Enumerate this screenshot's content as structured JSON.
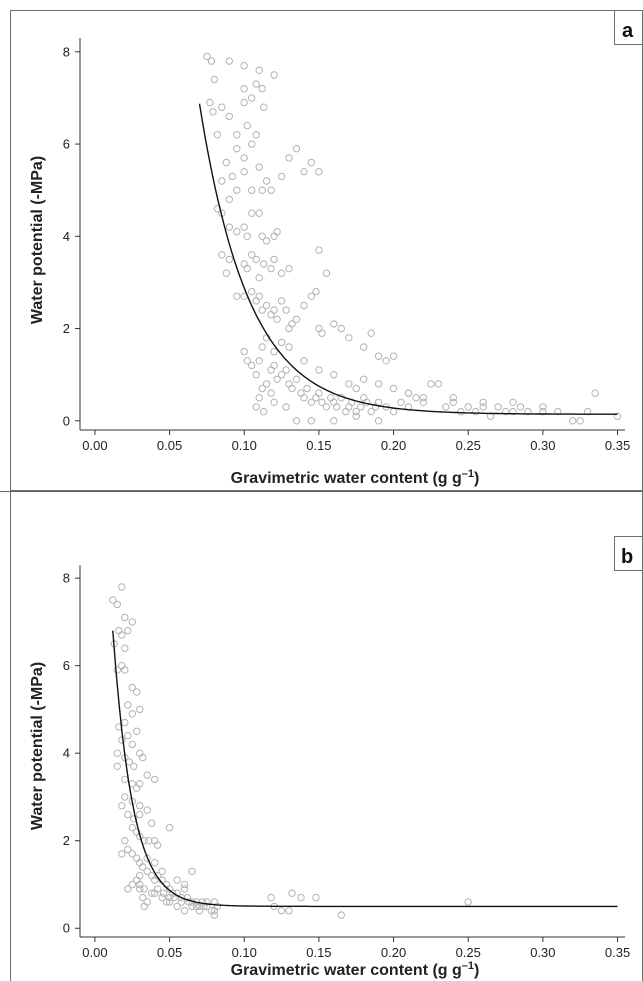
{
  "chart_data": [
    {
      "type": "scatter",
      "panel_label": "a",
      "xlabel": "Gravimetric water content (g g",
      "xlabel_sup": "–1",
      "xlabel_end": ")",
      "ylabel": "Water potential (-MPa)",
      "xlim": [
        -0.01,
        0.355
      ],
      "ylim": [
        -0.2,
        8.3
      ],
      "xticks": [
        0.0,
        0.05,
        0.1,
        0.15,
        0.2,
        0.25,
        0.3,
        0.35
      ],
      "xtick_labels": [
        "0.00",
        "0.05",
        "0.10",
        "0.15",
        "0.20",
        "0.25",
        "0.30",
        "0.35"
      ],
      "yticks": [
        0,
        2,
        4,
        6,
        8
      ],
      "ytick_labels": [
        "0",
        "2",
        "4",
        "6",
        "8"
      ],
      "marker_color": "#b3b3b3",
      "curve_color": "#111111",
      "curve": {
        "x_start": 0.07,
        "x_end": 0.35,
        "a": 0.14,
        "b": 55,
        "k": 30
      },
      "points": [
        [
          0.075,
          7.9
        ],
        [
          0.078,
          7.8
        ],
        [
          0.08,
          7.4
        ],
        [
          0.077,
          6.9
        ],
        [
          0.079,
          6.7
        ],
        [
          0.085,
          6.8
        ],
        [
          0.09,
          6.6
        ],
        [
          0.082,
          6.2
        ],
        [
          0.095,
          6.2
        ],
        [
          0.1,
          6.9
        ],
        [
          0.1,
          7.2
        ],
        [
          0.105,
          7.0
        ],
        [
          0.108,
          7.3
        ],
        [
          0.11,
          7.6
        ],
        [
          0.112,
          7.2
        ],
        [
          0.113,
          6.8
        ],
        [
          0.09,
          7.8
        ],
        [
          0.1,
          7.7
        ],
        [
          0.12,
          7.5
        ],
        [
          0.095,
          5.9
        ],
        [
          0.088,
          5.6
        ],
        [
          0.092,
          5.3
        ],
        [
          0.085,
          5.2
        ],
        [
          0.1,
          5.4
        ],
        [
          0.105,
          5.0
        ],
        [
          0.11,
          5.5
        ],
        [
          0.112,
          5.0
        ],
        [
          0.115,
          5.2
        ],
        [
          0.118,
          5.0
        ],
        [
          0.125,
          5.3
        ],
        [
          0.13,
          5.7
        ],
        [
          0.135,
          5.9
        ],
        [
          0.14,
          5.4
        ],
        [
          0.145,
          5.6
        ],
        [
          0.15,
          5.4
        ],
        [
          0.105,
          6.0
        ],
        [
          0.108,
          6.2
        ],
        [
          0.102,
          6.4
        ],
        [
          0.1,
          5.7
        ],
        [
          0.095,
          5.0
        ],
        [
          0.09,
          4.8
        ],
        [
          0.085,
          4.5
        ],
        [
          0.082,
          4.6
        ],
        [
          0.09,
          4.2
        ],
        [
          0.095,
          4.1
        ],
        [
          0.1,
          4.2
        ],
        [
          0.102,
          4.0
        ],
        [
          0.105,
          4.5
        ],
        [
          0.11,
          4.5
        ],
        [
          0.112,
          4.0
        ],
        [
          0.115,
          3.9
        ],
        [
          0.12,
          4.0
        ],
        [
          0.122,
          4.1
        ],
        [
          0.085,
          3.6
        ],
        [
          0.088,
          3.2
        ],
        [
          0.09,
          3.5
        ],
        [
          0.1,
          3.4
        ],
        [
          0.102,
          3.3
        ],
        [
          0.105,
          3.6
        ],
        [
          0.108,
          3.5
        ],
        [
          0.11,
          3.1
        ],
        [
          0.113,
          3.4
        ],
        [
          0.118,
          3.3
        ],
        [
          0.12,
          3.5
        ],
        [
          0.125,
          3.2
        ],
        [
          0.13,
          3.3
        ],
        [
          0.15,
          3.7
        ],
        [
          0.155,
          3.2
        ],
        [
          0.095,
          2.7
        ],
        [
          0.1,
          2.7
        ],
        [
          0.105,
          2.8
        ],
        [
          0.108,
          2.6
        ],
        [
          0.11,
          2.7
        ],
        [
          0.112,
          2.4
        ],
        [
          0.115,
          2.5
        ],
        [
          0.118,
          2.3
        ],
        [
          0.12,
          2.4
        ],
        [
          0.122,
          2.2
        ],
        [
          0.125,
          2.6
        ],
        [
          0.128,
          2.4
        ],
        [
          0.13,
          2.0
        ],
        [
          0.132,
          2.1
        ],
        [
          0.135,
          2.2
        ],
        [
          0.14,
          2.5
        ],
        [
          0.145,
          2.7
        ],
        [
          0.148,
          2.8
        ],
        [
          0.15,
          2.0
        ],
        [
          0.152,
          1.9
        ],
        [
          0.16,
          2.1
        ],
        [
          0.165,
          2.0
        ],
        [
          0.17,
          1.8
        ],
        [
          0.18,
          1.6
        ],
        [
          0.185,
          1.9
        ],
        [
          0.19,
          1.4
        ],
        [
          0.195,
          1.3
        ],
        [
          0.2,
          1.4
        ],
        [
          0.1,
          1.5
        ],
        [
          0.102,
          1.3
        ],
        [
          0.105,
          1.2
        ],
        [
          0.108,
          1.0
        ],
        [
          0.11,
          1.3
        ],
        [
          0.112,
          1.6
        ],
        [
          0.115,
          1.8
        ],
        [
          0.118,
          1.1
        ],
        [
          0.12,
          1.2
        ],
        [
          0.122,
          0.9
        ],
        [
          0.125,
          1.0
        ],
        [
          0.128,
          1.1
        ],
        [
          0.13,
          0.8
        ],
        [
          0.132,
          0.7
        ],
        [
          0.135,
          0.9
        ],
        [
          0.138,
          0.6
        ],
        [
          0.14,
          0.5
        ],
        [
          0.142,
          0.7
        ],
        [
          0.145,
          0.4
        ],
        [
          0.148,
          0.5
        ],
        [
          0.15,
          0.6
        ],
        [
          0.152,
          0.4
        ],
        [
          0.155,
          0.3
        ],
        [
          0.158,
          0.5
        ],
        [
          0.16,
          0.4
        ],
        [
          0.162,
          0.3
        ],
        [
          0.165,
          0.5
        ],
        [
          0.168,
          0.2
        ],
        [
          0.17,
          0.3
        ],
        [
          0.172,
          0.4
        ],
        [
          0.175,
          0.2
        ],
        [
          0.178,
          0.3
        ],
        [
          0.18,
          0.5
        ],
        [
          0.182,
          0.4
        ],
        [
          0.185,
          0.2
        ],
        [
          0.188,
          0.3
        ],
        [
          0.19,
          0.4
        ],
        [
          0.195,
          0.3
        ],
        [
          0.2,
          0.2
        ],
        [
          0.205,
          0.4
        ],
        [
          0.21,
          0.3
        ],
        [
          0.215,
          0.5
        ],
        [
          0.22,
          0.4
        ],
        [
          0.225,
          0.8
        ],
        [
          0.23,
          0.8
        ],
        [
          0.235,
          0.3
        ],
        [
          0.24,
          0.4
        ],
        [
          0.245,
          0.2
        ],
        [
          0.25,
          0.3
        ],
        [
          0.255,
          0.2
        ],
        [
          0.26,
          0.3
        ],
        [
          0.265,
          0.1
        ],
        [
          0.27,
          0.3
        ],
        [
          0.275,
          0.2
        ],
        [
          0.28,
          0.4
        ],
        [
          0.285,
          0.3
        ],
        [
          0.29,
          0.2
        ],
        [
          0.3,
          0.2
        ],
        [
          0.31,
          0.2
        ],
        [
          0.32,
          0.0
        ],
        [
          0.325,
          0.0
        ],
        [
          0.33,
          0.2
        ],
        [
          0.335,
          0.6
        ],
        [
          0.35,
          0.1
        ],
        [
          0.113,
          0.2
        ],
        [
          0.12,
          0.4
        ],
        [
          0.128,
          0.3
        ],
        [
          0.135,
          0.0
        ],
        [
          0.145,
          0.0
        ],
        [
          0.16,
          0.0
        ],
        [
          0.175,
          0.1
        ],
        [
          0.19,
          0.0
        ],
        [
          0.21,
          0.6
        ],
        [
          0.12,
          1.5
        ],
        [
          0.125,
          1.7
        ],
        [
          0.13,
          1.6
        ],
        [
          0.14,
          1.3
        ],
        [
          0.15,
          1.1
        ],
        [
          0.16,
          1.0
        ],
        [
          0.17,
          0.8
        ],
        [
          0.175,
          0.7
        ],
        [
          0.18,
          0.9
        ],
        [
          0.19,
          0.8
        ],
        [
          0.2,
          0.7
        ],
        [
          0.21,
          0.6
        ],
        [
          0.22,
          0.5
        ],
        [
          0.24,
          0.5
        ],
        [
          0.26,
          0.4
        ],
        [
          0.28,
          0.2
        ],
        [
          0.3,
          0.3
        ],
        [
          0.115,
          0.8
        ],
        [
          0.118,
          0.6
        ],
        [
          0.11,
          0.5
        ],
        [
          0.108,
          0.3
        ],
        [
          0.112,
          0.7
        ]
      ]
    },
    {
      "type": "scatter",
      "panel_label": "b",
      "xlabel": "Gravimetric water content (g g",
      "xlabel_sup": "–1",
      "xlabel_end": ")",
      "ylabel": "Water potential (-MPa)",
      "xlim": [
        -0.01,
        0.355
      ],
      "ylim": [
        -0.2,
        8.3
      ],
      "xticks": [
        0.0,
        0.05,
        0.1,
        0.15,
        0.2,
        0.25,
        0.3,
        0.35
      ],
      "xtick_labels": [
        "0.00",
        "0.05",
        "0.10",
        "0.15",
        "0.20",
        "0.25",
        "0.30",
        "0.35"
      ],
      "yticks": [
        0,
        2,
        4,
        6,
        8
      ],
      "ytick_labels": [
        "0",
        "2",
        "4",
        "6",
        "8"
      ],
      "marker_color": "#b3b3b3",
      "curve_color": "#111111",
      "curve": {
        "x_start": 0.012,
        "x_end": 0.35,
        "a": 0.5,
        "b": 15.5,
        "k": 75
      },
      "points": [
        [
          0.012,
          7.5
        ],
        [
          0.015,
          7.4
        ],
        [
          0.018,
          7.8
        ],
        [
          0.02,
          7.1
        ],
        [
          0.016,
          6.8
        ],
        [
          0.018,
          6.7
        ],
        [
          0.022,
          6.8
        ],
        [
          0.025,
          7.0
        ],
        [
          0.013,
          6.5
        ],
        [
          0.02,
          6.4
        ],
        [
          0.015,
          5.9
        ],
        [
          0.018,
          6.0
        ],
        [
          0.02,
          5.9
        ],
        [
          0.025,
          5.5
        ],
        [
          0.028,
          5.4
        ],
        [
          0.022,
          5.1
        ],
        [
          0.025,
          4.9
        ],
        [
          0.03,
          5.0
        ],
        [
          0.02,
          4.7
        ],
        [
          0.016,
          4.6
        ],
        [
          0.018,
          4.3
        ],
        [
          0.022,
          4.4
        ],
        [
          0.025,
          4.2
        ],
        [
          0.028,
          4.5
        ],
        [
          0.015,
          4.0
        ],
        [
          0.02,
          3.9
        ],
        [
          0.023,
          3.8
        ],
        [
          0.026,
          3.7
        ],
        [
          0.03,
          4.0
        ],
        [
          0.032,
          3.9
        ],
        [
          0.015,
          3.7
        ],
        [
          0.02,
          3.4
        ],
        [
          0.025,
          3.3
        ],
        [
          0.028,
          3.2
        ],
        [
          0.03,
          3.3
        ],
        [
          0.035,
          3.5
        ],
        [
          0.04,
          3.4
        ],
        [
          0.02,
          3.0
        ],
        [
          0.025,
          2.9
        ],
        [
          0.03,
          2.8
        ],
        [
          0.018,
          2.8
        ],
        [
          0.022,
          2.6
        ],
        [
          0.026,
          2.5
        ],
        [
          0.03,
          2.6
        ],
        [
          0.035,
          2.7
        ],
        [
          0.038,
          2.4
        ],
        [
          0.025,
          2.3
        ],
        [
          0.028,
          2.2
        ],
        [
          0.03,
          2.1
        ],
        [
          0.033,
          2.0
        ],
        [
          0.036,
          2.0
        ],
        [
          0.04,
          2.0
        ],
        [
          0.042,
          1.9
        ],
        [
          0.02,
          2.0
        ],
        [
          0.022,
          1.8
        ],
        [
          0.025,
          1.7
        ],
        [
          0.018,
          1.7
        ],
        [
          0.028,
          1.6
        ],
        [
          0.03,
          1.5
        ],
        [
          0.032,
          1.4
        ],
        [
          0.035,
          1.3
        ],
        [
          0.038,
          1.2
        ],
        [
          0.04,
          1.1
        ],
        [
          0.042,
          1.2
        ],
        [
          0.045,
          1.1
        ],
        [
          0.048,
          1.0
        ],
        [
          0.05,
          0.9
        ],
        [
          0.052,
          0.8
        ],
        [
          0.055,
          0.8
        ],
        [
          0.058,
          0.7
        ],
        [
          0.06,
          0.9
        ],
        [
          0.062,
          0.7
        ],
        [
          0.065,
          0.6
        ],
        [
          0.068,
          0.6
        ],
        [
          0.07,
          0.5
        ],
        [
          0.072,
          0.6
        ],
        [
          0.075,
          0.5
        ],
        [
          0.078,
          0.4
        ],
        [
          0.08,
          0.6
        ],
        [
          0.082,
          0.5
        ],
        [
          0.022,
          0.9
        ],
        [
          0.025,
          1.0
        ],
        [
          0.03,
          0.9
        ],
        [
          0.032,
          0.7
        ],
        [
          0.035,
          0.6
        ],
        [
          0.033,
          0.5
        ],
        [
          0.04,
          0.8
        ],
        [
          0.045,
          0.7
        ],
        [
          0.048,
          0.6
        ],
        [
          0.05,
          0.7
        ],
        [
          0.055,
          0.5
        ],
        [
          0.06,
          0.4
        ],
        [
          0.065,
          0.5
        ],
        [
          0.07,
          0.4
        ],
        [
          0.075,
          0.6
        ],
        [
          0.08,
          0.4
        ],
        [
          0.03,
          1.2
        ],
        [
          0.035,
          1.6
        ],
        [
          0.04,
          1.5
        ],
        [
          0.045,
          1.3
        ],
        [
          0.05,
          2.3
        ],
        [
          0.055,
          1.1
        ],
        [
          0.06,
          1.0
        ],
        [
          0.065,
          1.3
        ],
        [
          0.118,
          0.7
        ],
        [
          0.12,
          0.5
        ],
        [
          0.125,
          0.4
        ],
        [
          0.13,
          0.4
        ],
        [
          0.132,
          0.8
        ],
        [
          0.138,
          0.7
        ],
        [
          0.148,
          0.7
        ],
        [
          0.165,
          0.3
        ],
        [
          0.25,
          0.6
        ],
        [
          0.028,
          1.1
        ],
        [
          0.03,
          1.0
        ],
        [
          0.033,
          0.9
        ],
        [
          0.038,
          0.8
        ],
        [
          0.042,
          0.9
        ],
        [
          0.046,
          0.8
        ],
        [
          0.05,
          0.6
        ],
        [
          0.053,
          0.7
        ],
        [
          0.058,
          0.6
        ],
        [
          0.063,
          0.6
        ],
        [
          0.068,
          0.5
        ],
        [
          0.073,
          0.5
        ],
        [
          0.08,
          0.3
        ]
      ]
    }
  ]
}
